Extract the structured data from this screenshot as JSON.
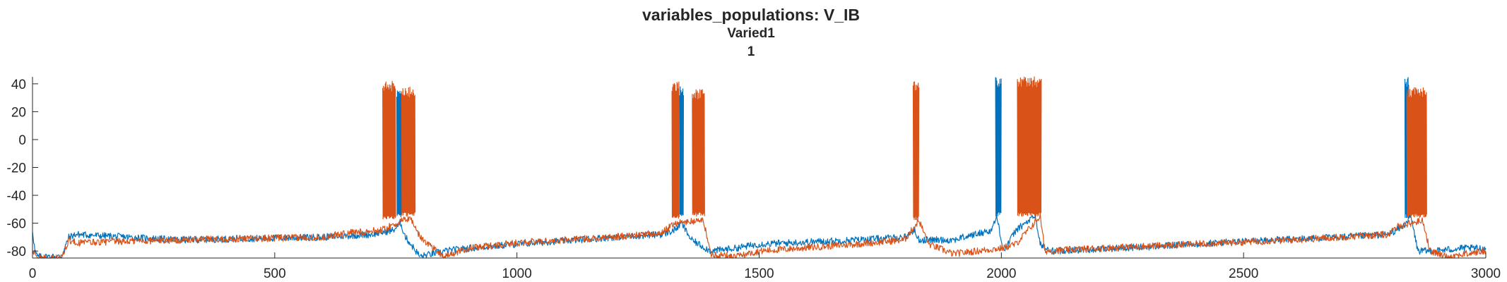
{
  "chart_data": {
    "type": "line",
    "title": "variables_populations: V_IB",
    "subtitle_lines": [
      "Varied1",
      "1"
    ],
    "xlabel": "",
    "ylabel": "",
    "xlim": [
      0,
      3000
    ],
    "ylim": [
      -85,
      45
    ],
    "xticks": [
      0,
      500,
      1000,
      1500,
      2000,
      2500,
      3000
    ],
    "yticks": [
      -80,
      -60,
      -40,
      -20,
      0,
      20,
      40
    ],
    "grid": false,
    "legend": "none",
    "series": [
      {
        "color": "#0072BD",
        "baseline_segments": [
          {
            "x": [
              0,
              5,
              10,
              25,
              60,
              75,
              90,
              300,
              600,
              700,
              745,
              760,
              770,
              800
            ],
            "y": [
              -65,
              -80,
              -84,
              -84,
              -84,
              -70,
              -68,
              -72,
              -70,
              -68,
              -65,
              -60,
              -70,
              -84
            ]
          },
          {
            "x": [
              800,
              850,
              900,
              1000,
              1200,
              1300,
              1325,
              1340,
              1360,
              1400,
              1450,
              1500
            ],
            "y": [
              -84,
              -80,
              -78,
              -75,
              -70,
              -68,
              -65,
              -60,
              -72,
              -80,
              -78,
              -75
            ]
          },
          {
            "x": [
              1500,
              1700,
              1800,
              1820,
              1830,
              1900,
              1980,
              1990,
              2005,
              2030,
              2070,
              2080,
              2100
            ],
            "y": [
              -75,
              -72,
              -70,
              -65,
              -72,
              -72,
              -65,
              -55,
              -80,
              -65,
              -55,
              -75,
              -80
            ]
          },
          {
            "x": [
              2100,
              2300,
              2500,
              2700,
              2800,
              2830,
              2845,
              2860,
              2890,
              2950,
              3000
            ],
            "y": [
              -80,
              -77,
              -73,
              -70,
              -68,
              -62,
              -55,
              -80,
              -80,
              -78,
              -78
            ]
          }
        ],
        "bursts": [
          {
            "start": 752,
            "end": 762,
            "min": -56,
            "max": 35
          },
          {
            "start": 1336,
            "end": 1344,
            "min": -56,
            "max": 38
          },
          {
            "start": 1988,
            "end": 2000,
            "min": -55,
            "max": 45
          },
          {
            "start": 2833,
            "end": 2842,
            "min": -56,
            "max": 45
          }
        ]
      },
      {
        "color": "#D95319",
        "baseline_segments": [
          {
            "x": [
              0,
              10,
              30,
              60,
              75,
              90,
              300,
              600,
              650,
              720,
              780,
              800,
              850
            ],
            "y": [
              -80,
              -85,
              -85,
              -85,
              -72,
              -74,
              -72,
              -70,
              -67,
              -65,
              -56,
              -70,
              -84
            ]
          },
          {
            "x": [
              850,
              900,
              1000,
              1200,
              1300,
              1325,
              1385,
              1400,
              1450,
              1500
            ],
            "y": [
              -84,
              -78,
              -74,
              -70,
              -67,
              -60,
              -58,
              -82,
              -84,
              -80
            ]
          },
          {
            "x": [
              1500,
              1700,
              1800,
              1815,
              1830,
              1850,
              1900,
              2000,
              2030,
              2080,
              2090
            ],
            "y": [
              -80,
              -75,
              -72,
              -65,
              -58,
              -75,
              -82,
              -78,
              -75,
              -55,
              -80
            ]
          },
          {
            "x": [
              2090,
              2200,
              2400,
              2600,
              2800,
              2820,
              2870,
              2885,
              2920,
              3000
            ],
            "y": [
              -80,
              -78,
              -75,
              -72,
              -68,
              -62,
              -58,
              -80,
              -84,
              -80
            ]
          }
        ],
        "bursts": [
          {
            "start": 723,
            "end": 750,
            "min": -57,
            "max": 42
          },
          {
            "start": 762,
            "end": 790,
            "min": -55,
            "max": 38
          },
          {
            "start": 1320,
            "end": 1335,
            "min": -57,
            "max": 42
          },
          {
            "start": 1362,
            "end": 1388,
            "min": -55,
            "max": 36
          },
          {
            "start": 1818,
            "end": 1830,
            "min": -58,
            "max": 42
          },
          {
            "start": 2033,
            "end": 2083,
            "min": -55,
            "max": 45
          },
          {
            "start": 2837,
            "end": 2878,
            "min": -56,
            "max": 38
          }
        ]
      }
    ]
  }
}
